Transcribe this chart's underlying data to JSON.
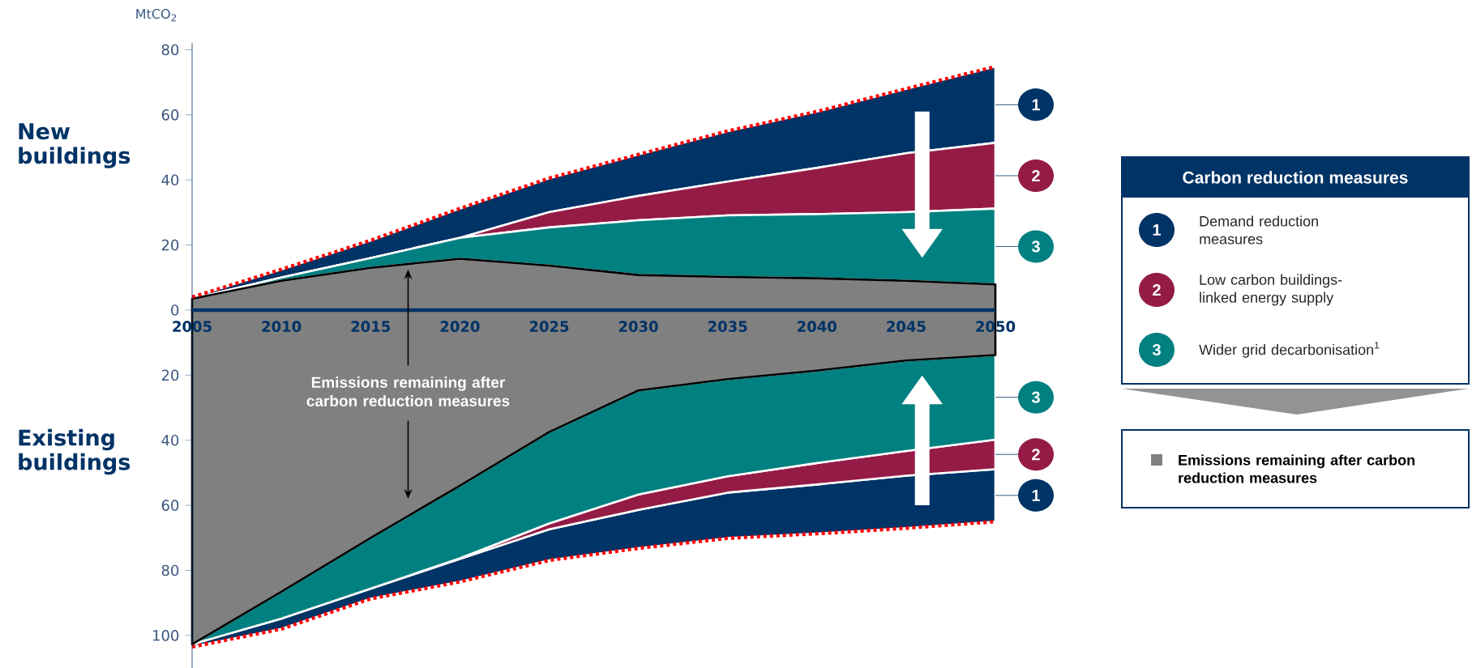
{
  "chart_data": [
    {
      "type": "area",
      "stacked": true,
      "ylabel": "MtCO$_{2}$",
      "legend": "right",
      "legend_title": "Carbon reduction measures",
      "x": [
        2005,
        2010,
        2015,
        2020,
        2025,
        2030,
        2035,
        2040,
        2045,
        2050
      ],
      "xlim": [
        2005,
        2050
      ],
      "xticks": [
        2005,
        2010,
        2015,
        2020,
        2025,
        2030,
        2035,
        2040,
        2045,
        2050
      ],
      "ylim": [
        0,
        82
      ],
      "yticks": [
        0,
        20,
        40,
        60,
        80
      ],
      "series": [
        {
          "name": "Emissions remaining after carbon reduction measures",
          "color": "#808080",
          "values": [
            3.5,
            9,
            13,
            15.8,
            13.7,
            10.8,
            10.2,
            9.8,
            9,
            7.9
          ]
        },
        {
          "name": "Wider grid decarbonisation$^{1}$",
          "color": "#008080",
          "values": [
            0,
            1,
            3,
            6.4,
            11.7,
            16.8,
            18.9,
            19.7,
            21.1,
            23.3
          ]
        },
        {
          "name": "Low carbon buildings-linked energy supply",
          "color": "#951b47",
          "values": [
            0,
            0,
            0,
            0,
            4.7,
            7.5,
            10.4,
            14.2,
            18.1,
            20.2
          ]
        },
        {
          "name": "Demand reduction measures",
          "color": "#003366",
          "values": [
            0.5,
            2.5,
            5.4,
            9,
            10.4,
            12.7,
            15.5,
            17.3,
            19.8,
            23.4
          ]
        },
        {
          "type": "line",
          "color": "#ff0000",
          "line_style": "dotted",
          "values": [
            4,
            12.5,
            21.4,
            31.2,
            40.5,
            47.8,
            55,
            61,
            68,
            74.8
          ]
        }
      ],
      "annotations": [
        "New buildings",
        "1",
        "2",
        "3",
        "1",
        "2",
        "3"
      ]
    },
    {
      "type": "area",
      "stacked": true,
      "tick_labels": "y",
      "x": [
        2005,
        2010,
        2015,
        2020,
        2025,
        2030,
        2035,
        2040,
        2045,
        2050
      ],
      "xlim": [
        2005,
        2050
      ],
      "ylim": [
        -110,
        0
      ],
      "yticks": [
        {
          "value": -100,
          "label": "100"
        },
        {
          "value": -80,
          "label": "80"
        },
        {
          "value": -60,
          "label": "60"
        },
        {
          "value": -40,
          "label": "40"
        },
        {
          "value": -20,
          "label": "20"
        }
      ],
      "series": [
        {
          "color": "#808080",
          "values": [
            -102.7,
            -86.6,
            -70,
            -54,
            -37.5,
            -24.7,
            -21.2,
            -18.6,
            -15.5,
            -13.8
          ]
        },
        {
          "color": "#008080",
          "values": [
            0,
            -8.2,
            -15.6,
            -22.3,
            -28.1,
            -32,
            -29.9,
            -28.4,
            -27.8,
            -26
          ]
        },
        {
          "color": "#951b47",
          "values": [
            0,
            0,
            0,
            -0.2,
            -1.8,
            -4.7,
            -5,
            -6.6,
            -7.6,
            -9.1
          ]
        },
        {
          "color": "#003366",
          "values": [
            -0.8,
            -3.2,
            -3.1,
            -7,
            -9.5,
            -11.8,
            -14,
            -15.1,
            -16.1,
            -16.1
          ]
        },
        {
          "type": "line",
          "color": "#ff0000",
          "line_style": "dotted",
          "values": [
            -103.5,
            -98,
            -88.7,
            -83.5,
            -76.9,
            -73.2,
            -70.1,
            -68.7,
            -67,
            -65
          ]
        }
      ],
      "annotations": [
        "Existing buildings",
        "Emissions remaining after carbon reduction measures",
        "3",
        "2",
        "1"
      ]
    }
  ]
}
